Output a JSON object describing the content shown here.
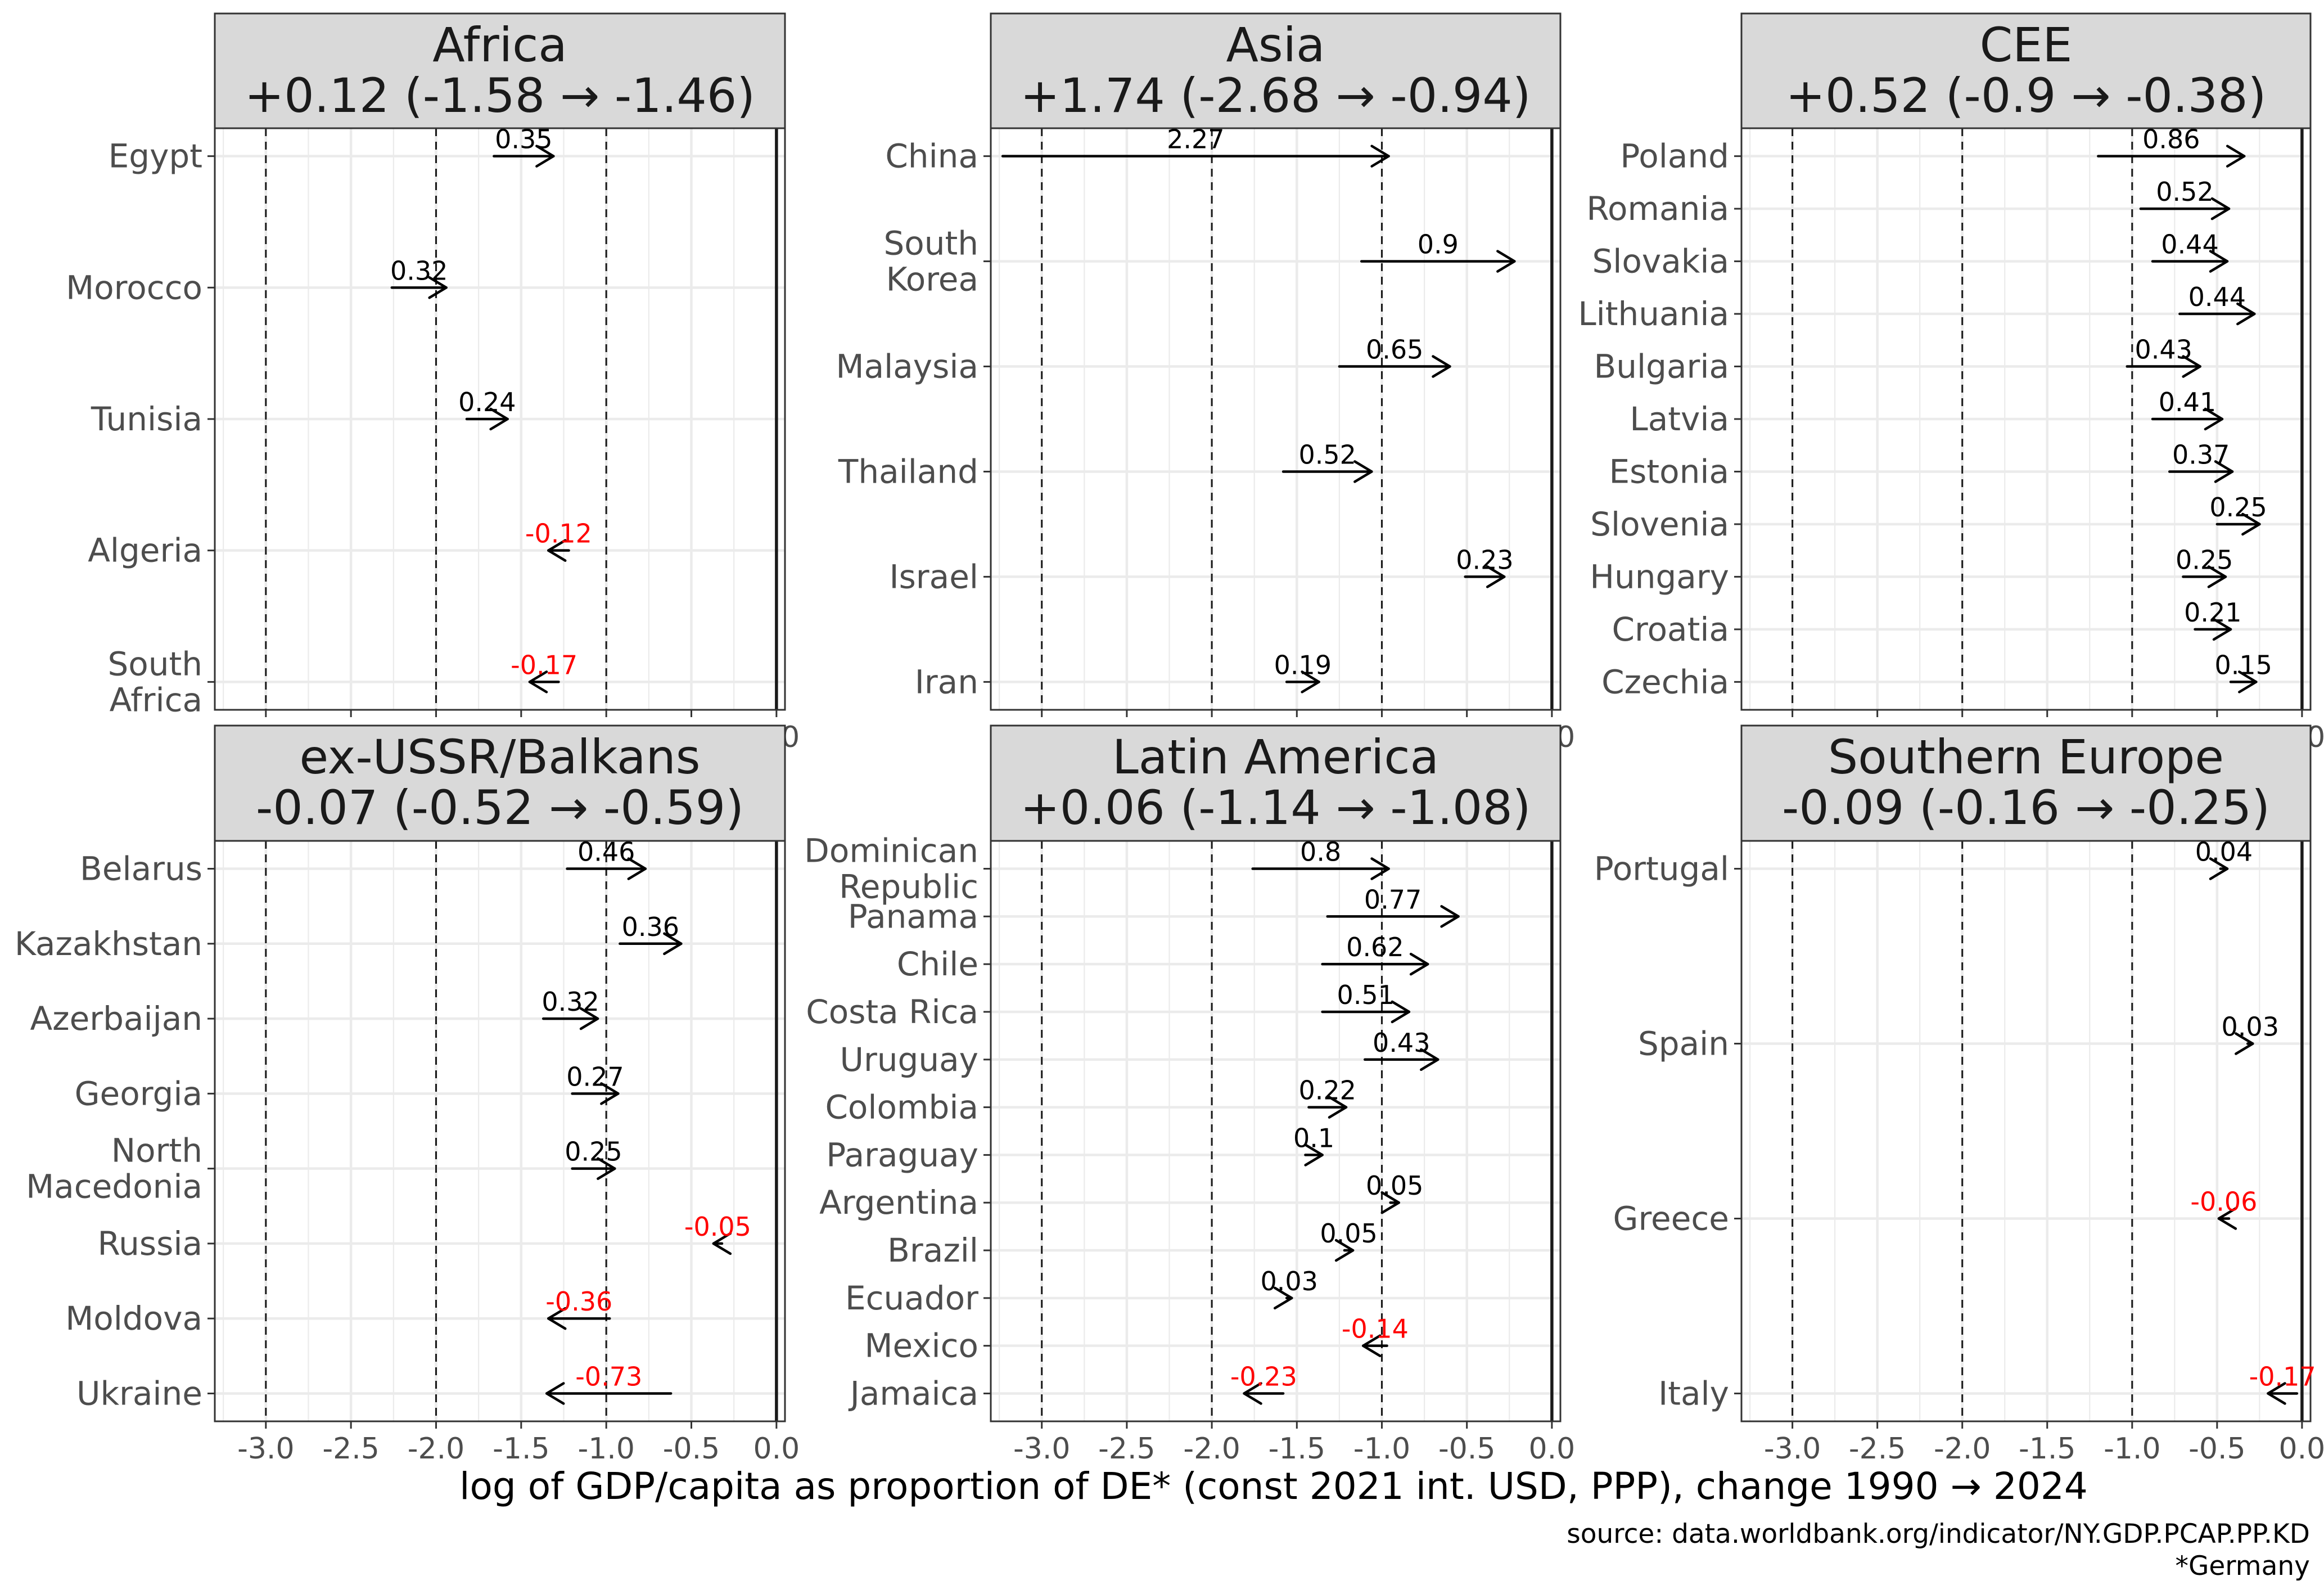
{
  "chart_data": {
    "type": "arrow-dot",
    "xlabel": "log of GDP/capita as proportion of DE* (const 2021 int. USD, PPP), change 1990 → 2024",
    "caption": [
      "source: data.worldbank.org/indicator/NY.GDP.PCAP.PP.KD",
      "*Germany"
    ],
    "xlim": [
      -3.3,
      0.05
    ],
    "x_ticks": [
      "-3.0",
      "-2.5",
      "-2.0",
      "-1.5",
      "-1.0",
      "-0.5",
      "0.0"
    ],
    "reference_lines": [
      -3,
      -2,
      -1,
      0
    ],
    "colors": {
      "positive": "#000000",
      "negative": "#ff0000",
      "strip": "#d9d9d9"
    },
    "panels": [
      {
        "title": "Africa",
        "subtitle": "+0.12 (-1.58 → -1.46)",
        "countries": [
          {
            "name": "Egypt",
            "start": -1.66,
            "end": -1.31,
            "change": "0.35"
          },
          {
            "name": "Morocco",
            "start": -2.26,
            "end": -1.94,
            "change": "0.32"
          },
          {
            "name": "Tunisia",
            "start": -1.82,
            "end": -1.58,
            "change": "0.24"
          },
          {
            "name": "Algeria",
            "start": -1.22,
            "end": -1.34,
            "change": "-0.12"
          },
          {
            "name": "South\nAfrica",
            "start": -1.28,
            "end": -1.45,
            "change": "-0.17"
          }
        ]
      },
      {
        "title": "Asia",
        "subtitle": "+1.74 (-2.68 → -0.94)",
        "countries": [
          {
            "name": "China",
            "start": -3.23,
            "end": -0.96,
            "change": "2.27"
          },
          {
            "name": "South\nKorea",
            "start": -1.12,
            "end": -0.22,
            "change": "0.9"
          },
          {
            "name": "Malaysia",
            "start": -1.25,
            "end": -0.6,
            "change": "0.65"
          },
          {
            "name": "Thailand",
            "start": -1.58,
            "end": -1.06,
            "change": "0.52"
          },
          {
            "name": "Israel",
            "start": -0.51,
            "end": -0.28,
            "change": "0.23"
          },
          {
            "name": "Iran",
            "start": -1.56,
            "end": -1.37,
            "change": "0.19"
          }
        ]
      },
      {
        "title": "CEE",
        "subtitle": "+0.52 (-0.9 → -0.38)",
        "countries": [
          {
            "name": "Poland",
            "start": -1.2,
            "end": -0.34,
            "change": "0.86"
          },
          {
            "name": "Romania",
            "start": -0.95,
            "end": -0.43,
            "change": "0.52"
          },
          {
            "name": "Slovakia",
            "start": -0.88,
            "end": -0.44,
            "change": "0.44"
          },
          {
            "name": "Lithuania",
            "start": -0.72,
            "end": -0.28,
            "change": "0.44"
          },
          {
            "name": "Bulgaria",
            "start": -1.03,
            "end": -0.6,
            "change": "0.43"
          },
          {
            "name": "Latvia",
            "start": -0.88,
            "end": -0.47,
            "change": "0.41"
          },
          {
            "name": "Estonia",
            "start": -0.78,
            "end": -0.41,
            "change": "0.37"
          },
          {
            "name": "Slovenia",
            "start": -0.5,
            "end": -0.25,
            "change": "0.25"
          },
          {
            "name": "Hungary",
            "start": -0.7,
            "end": -0.45,
            "change": "0.25"
          },
          {
            "name": "Croatia",
            "start": -0.63,
            "end": -0.42,
            "change": "0.21"
          },
          {
            "name": "Czechia",
            "start": -0.42,
            "end": -0.27,
            "change": "0.15"
          }
        ]
      },
      {
        "title": "ex-USSR/Balkans",
        "subtitle": "-0.07 (-0.52 → -0.59)",
        "countries": [
          {
            "name": "Belarus",
            "start": -1.23,
            "end": -0.77,
            "change": "0.46"
          },
          {
            "name": "Kazakhstan",
            "start": -0.92,
            "end": -0.56,
            "change": "0.36"
          },
          {
            "name": "Azerbaijan",
            "start": -1.37,
            "end": -1.05,
            "change": "0.32"
          },
          {
            "name": "Georgia",
            "start": -1.2,
            "end": -0.93,
            "change": "0.27"
          },
          {
            "name": "North\nMacedonia",
            "start": -1.2,
            "end": -0.95,
            "change": "0.25"
          },
          {
            "name": "Russia",
            "start": -0.32,
            "end": -0.37,
            "change": "-0.05"
          },
          {
            "name": "Moldova",
            "start": -0.98,
            "end": -1.34,
            "change": "-0.36"
          },
          {
            "name": "Ukraine",
            "start": -0.62,
            "end": -1.35,
            "change": "-0.73"
          }
        ]
      },
      {
        "title": "Latin America",
        "subtitle": "+0.06 (-1.14 → -1.08)",
        "countries": [
          {
            "name": "Dominican\nRepublic",
            "start": -1.76,
            "end": -0.96,
            "change": "0.8"
          },
          {
            "name": "Panama",
            "start": -1.32,
            "end": -0.55,
            "change": "0.77"
          },
          {
            "name": "Chile",
            "start": -1.35,
            "end": -0.73,
            "change": "0.62"
          },
          {
            "name": "Costa Rica",
            "start": -1.35,
            "end": -0.84,
            "change": "0.51"
          },
          {
            "name": "Uruguay",
            "start": -1.1,
            "end": -0.67,
            "change": "0.43"
          },
          {
            "name": "Colombia",
            "start": -1.43,
            "end": -1.21,
            "change": "0.22"
          },
          {
            "name": "Paraguay",
            "start": -1.45,
            "end": -1.35,
            "change": "0.1"
          },
          {
            "name": "Argentina",
            "start": -0.95,
            "end": -0.9,
            "change": "0.05"
          },
          {
            "name": "Brazil",
            "start": -1.22,
            "end": -1.17,
            "change": "0.05"
          },
          {
            "name": "Ecuador",
            "start": -1.56,
            "end": -1.53,
            "change": "0.03"
          },
          {
            "name": "Mexico",
            "start": -0.97,
            "end": -1.11,
            "change": "-0.14"
          },
          {
            "name": "Jamaica",
            "start": -1.58,
            "end": -1.81,
            "change": "-0.23"
          }
        ]
      },
      {
        "title": "Southern Europe",
        "subtitle": "-0.09 (-0.16 → -0.25)",
        "countries": [
          {
            "name": "Portugal",
            "start": -0.48,
            "end": -0.44,
            "change": "0.04"
          },
          {
            "name": "Spain",
            "start": -0.32,
            "end": -0.29,
            "change": "0.03"
          },
          {
            "name": "Greece",
            "start": -0.43,
            "end": -0.49,
            "change": "-0.06"
          },
          {
            "name": "Italy",
            "start": -0.03,
            "end": -0.2,
            "change": "-0.17"
          }
        ]
      }
    ]
  }
}
